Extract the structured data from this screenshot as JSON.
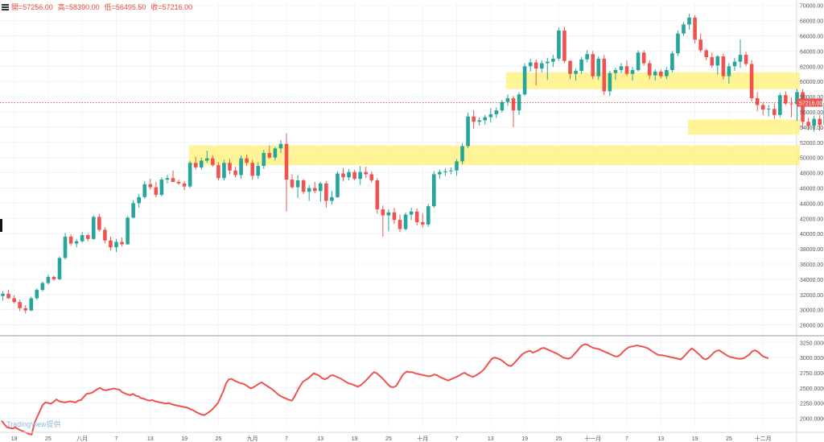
{
  "header": {
    "open": "開=57256.00",
    "high": "高=58390.00",
    "low": "低=56495.50",
    "close": "收=57216.00"
  },
  "watermark": "TradingView提供",
  "colors": {
    "up": "#26a69a",
    "down": "#ef5350",
    "zone": "#fff176",
    "line": "#ef5350"
  },
  "chart_data": [
    {
      "type": "candlestick",
      "y_ticks": [
        "70000.00",
        "68000.00",
        "66000.00",
        "64000.00",
        "62000.00",
        "60000.00",
        "58000.00",
        "56000.00",
        "54000.00",
        "52000.00",
        "50000.00",
        "48000.00",
        "46000.00",
        "44000.00",
        "42000.00",
        "40000.00",
        "38000.00",
        "36000.00",
        "34000.00",
        "32000.00",
        "30000.00",
        "28000.00"
      ],
      "ylim": [
        27000,
        70500
      ],
      "last_price_label": "57216.00",
      "x_tick_labels": [
        "19",
        "25",
        "八月",
        "7",
        "13",
        "19",
        "25",
        "九月",
        "7",
        "13",
        "19",
        "25",
        "十月",
        "7",
        "13",
        "19",
        "25",
        "十一月",
        "7",
        "13",
        "19",
        "25",
        "十二月"
      ],
      "x_tick_index": [
        2,
        8,
        14,
        20,
        26,
        32,
        38,
        44,
        50,
        56,
        62,
        68,
        74,
        80,
        86,
        92,
        98,
        104,
        110,
        116,
        122,
        128,
        134
      ],
      "zones": [
        {
          "y0": 49000,
          "y1": 51600,
          "from": 32.8,
          "to": 140.5
        },
        {
          "y0": 59000,
          "y1": 61200,
          "from": 88.7,
          "to": 140.5
        },
        {
          "y0": 53000,
          "y1": 55000,
          "from": 120.8,
          "to": 140.5
        }
      ],
      "ohlc": [
        [
          31800,
          32400,
          31200,
          32100
        ],
        [
          32100,
          32600,
          31400,
          31500
        ],
        [
          31500,
          31900,
          30800,
          31000
        ],
        [
          31000,
          31300,
          29800,
          30200
        ],
        [
          30200,
          30600,
          29500,
          29900
        ],
        [
          29900,
          31700,
          29800,
          31500
        ],
        [
          31500,
          32800,
          31300,
          32600
        ],
        [
          32600,
          33700,
          32400,
          33500
        ],
        [
          33500,
          34600,
          33300,
          34300
        ],
        [
          34300,
          34500,
          33800,
          34000
        ],
        [
          34000,
          37000,
          33900,
          36800
        ],
        [
          36800,
          40100,
          36600,
          39600
        ],
        [
          39600,
          39900,
          38400,
          38700
        ],
        [
          38700,
          39300,
          38200,
          39000
        ],
        [
          39000,
          40200,
          38800,
          39800
        ],
        [
          39800,
          40000,
          39000,
          39300
        ],
        [
          39300,
          42400,
          39200,
          42200
        ],
        [
          42200,
          42600,
          40300,
          40500
        ],
        [
          40500,
          40800,
          38700,
          39100
        ],
        [
          39100,
          39600,
          37800,
          38200
        ],
        [
          38200,
          39300,
          37600,
          38900
        ],
        [
          38900,
          39500,
          38300,
          38600
        ],
        [
          38600,
          42300,
          38500,
          42100
        ],
        [
          42100,
          44400,
          42000,
          44000
        ],
        [
          44000,
          45200,
          43400,
          44800
        ],
        [
          44800,
          46900,
          44600,
          46500
        ],
        [
          46500,
          47200,
          45800,
          46100
        ],
        [
          46100,
          46800,
          44800,
          45100
        ],
        [
          45100,
          47400,
          44900,
          47100
        ],
        [
          47100,
          47700,
          46600,
          47300
        ],
        [
          47300,
          48300,
          46800,
          46800
        ],
        [
          46800,
          47100,
          46400,
          46600
        ],
        [
          46600,
          46900,
          45700,
          46200
        ],
        [
          46200,
          49600,
          46000,
          49300
        ],
        [
          49300,
          50100,
          48400,
          48700
        ],
        [
          48700,
          50000,
          48400,
          49600
        ],
        [
          49600,
          50900,
          49300,
          49900
        ],
        [
          49900,
          50300,
          48800,
          49000
        ],
        [
          49000,
          49400,
          47000,
          47300
        ],
        [
          47300,
          49700,
          47000,
          49300
        ],
        [
          49300,
          49800,
          47800,
          48300
        ],
        [
          48300,
          48800,
          47400,
          47700
        ],
        [
          47700,
          50300,
          47200,
          49900
        ],
        [
          49900,
          50400,
          48900,
          49300
        ],
        [
          49300,
          49700,
          47100,
          47600
        ],
        [
          47600,
          49400,
          47200,
          48900
        ],
        [
          48900,
          51000,
          48500,
          50600
        ],
        [
          50600,
          51600,
          49800,
          50000
        ],
        [
          50000,
          51400,
          49600,
          51200
        ],
        [
          51200,
          52300,
          50600,
          51800
        ],
        [
          51800,
          53200,
          42900,
          47100
        ],
        [
          47100,
          47800,
          45900,
          46100
        ],
        [
          46100,
          47700,
          44700,
          47000
        ],
        [
          47000,
          47200,
          45200,
          45500
        ],
        [
          45500,
          46400,
          44300,
          46000
        ],
        [
          46000,
          46800,
          45300,
          45600
        ],
        [
          45600,
          46800,
          44200,
          46600
        ],
        [
          46600,
          46900,
          43400,
          44300
        ],
        [
          44300,
          45600,
          43800,
          44800
        ],
        [
          44800,
          48200,
          44700,
          47900
        ],
        [
          47900,
          48600,
          46900,
          47400
        ],
        [
          47400,
          48500,
          47000,
          48100
        ],
        [
          48100,
          48400,
          47000,
          47200
        ],
        [
          47200,
          48900,
          46400,
          48100
        ],
        [
          48100,
          48800,
          47300,
          47800
        ],
        [
          47800,
          48200,
          46700,
          47000
        ],
        [
          47000,
          47300,
          42600,
          43200
        ],
        [
          43200,
          43700,
          39600,
          42400
        ],
        [
          42400,
          43200,
          40300,
          42800
        ],
        [
          42800,
          43400,
          41300,
          41800
        ],
        [
          41800,
          42500,
          40200,
          40600
        ],
        [
          40600,
          42800,
          40400,
          42500
        ],
        [
          42500,
          43400,
          41800,
          42900
        ],
        [
          42900,
          43300,
          41100,
          41500
        ],
        [
          41500,
          42700,
          40800,
          41200
        ],
        [
          41200,
          43900,
          40900,
          43600
        ],
        [
          43600,
          48200,
          43400,
          47800
        ],
        [
          47800,
          48400,
          47200,
          48100
        ],
        [
          48100,
          48600,
          47600,
          48200
        ],
        [
          48200,
          48700,
          47800,
          48300
        ],
        [
          48300,
          49800,
          47600,
          49500
        ],
        [
          49500,
          51900,
          49100,
          51500
        ],
        [
          51500,
          55900,
          51200,
          55400
        ],
        [
          55400,
          56200,
          53800,
          54700
        ],
        [
          54700,
          55300,
          54200,
          54900
        ],
        [
          54900,
          55600,
          54300,
          55300
        ],
        [
          55300,
          56500,
          54600,
          55700
        ],
        [
          55700,
          56600,
          55200,
          56200
        ],
        [
          56200,
          57600,
          55900,
          57300
        ],
        [
          57300,
          58300,
          56800,
          57800
        ],
        [
          57800,
          58100,
          54000,
          56200
        ],
        [
          56200,
          58600,
          55600,
          58300
        ],
        [
          58300,
          62400,
          58100,
          62000
        ],
        [
          62000,
          63000,
          61300,
          62500
        ],
        [
          62500,
          62900,
          59500,
          61700
        ],
        [
          61700,
          62800,
          61200,
          62400
        ],
        [
          62400,
          63100,
          60200,
          62600
        ],
        [
          62600,
          63500,
          61900,
          63000
        ],
        [
          63000,
          67100,
          62700,
          66700
        ],
        [
          66700,
          67200,
          62400,
          62700
        ],
        [
          62700,
          62800,
          60300,
          61000
        ],
        [
          61000,
          61700,
          60100,
          61400
        ],
        [
          61400,
          63200,
          61000,
          62900
        ],
        [
          62900,
          64100,
          62500,
          63600
        ],
        [
          63600,
          64000,
          60300,
          60700
        ],
        [
          60700,
          63300,
          60200,
          63000
        ],
        [
          63000,
          63500,
          58200,
          58700
        ],
        [
          58700,
          61400,
          58100,
          61100
        ],
        [
          61100,
          61800,
          60200,
          61500
        ],
        [
          61500,
          62400,
          61100,
          62000
        ],
        [
          62000,
          62800,
          60700,
          61000
        ],
        [
          61000,
          61900,
          60100,
          61500
        ],
        [
          61500,
          64100,
          61300,
          63800
        ],
        [
          63800,
          64100,
          62100,
          62400
        ],
        [
          62400,
          62800,
          60300,
          60800
        ],
        [
          60800,
          61600,
          60100,
          61300
        ],
        [
          61300,
          61600,
          60400,
          60700
        ],
        [
          60700,
          61900,
          60300,
          61500
        ],
        [
          61500,
          64000,
          61200,
          63700
        ],
        [
          63700,
          66700,
          63400,
          66300
        ],
        [
          66300,
          67800,
          66000,
          67500
        ],
        [
          67500,
          68900,
          66800,
          68400
        ],
        [
          68400,
          68700,
          65000,
          65500
        ],
        [
          65500,
          66300,
          63800,
          64100
        ],
        [
          64100,
          64300,
          62800,
          63200
        ],
        [
          63200,
          63800,
          61800,
          62100
        ],
        [
          62100,
          63500,
          60900,
          63300
        ],
        [
          63300,
          63700,
          60200,
          60700
        ],
        [
          60700,
          62400,
          59700,
          62000
        ],
        [
          62000,
          63100,
          61400,
          62600
        ],
        [
          62600,
          65500,
          61800,
          63500
        ],
        [
          63500,
          63900,
          62000,
          62300
        ],
        [
          62300,
          62800,
          57400,
          57800
        ],
        [
          57800,
          58600,
          56100,
          56900
        ],
        [
          56900,
          57200,
          55600,
          56300
        ],
        [
          56300,
          56900,
          55400,
          56400
        ],
        [
          56400,
          57100,
          55100,
          55600
        ],
        [
          55600,
          58500,
          55300,
          58200
        ],
        [
          58200,
          58700,
          56900,
          57100
        ],
        [
          57100,
          57900,
          55300,
          57000
        ],
        [
          57000,
          59000,
          54800,
          58600
        ],
        [
          58600,
          59000,
          53800,
          54700
        ],
        [
          54700,
          55200,
          53600,
          54200
        ],
        [
          54200,
          55500,
          53400,
          55100
        ],
        [
          55100,
          55600,
          53500,
          54300
        ],
        [
          54300,
          57500,
          53900,
          57200
        ],
        [
          57200,
          59000,
          56800,
          57100
        ],
        [
          57256,
          58390,
          56495,
          57216
        ]
      ]
    },
    {
      "type": "line",
      "y_ticks": [
        "3250.0000",
        "3000.0000",
        "2750.0000",
        "2500.0000",
        "2250.0000",
        "2000.0000"
      ],
      "ylim": [
        1860,
        3320
      ],
      "values": [
        1960,
        1900,
        1850,
        1840,
        1830,
        1850,
        1820,
        1800,
        1780,
        1760,
        1740,
        1730,
        1920,
        2020,
        2120,
        2220,
        2260,
        2250,
        2240,
        2270,
        2310,
        2280,
        2270,
        2260,
        2270,
        2280,
        2270,
        2260,
        2290,
        2300,
        2350,
        2400,
        2410,
        2420,
        2450,
        2480,
        2500,
        2470,
        2460,
        2470,
        2480,
        2490,
        2480,
        2470,
        2430,
        2410,
        2390,
        2380,
        2400,
        2370,
        2360,
        2330,
        2320,
        2300,
        2290,
        2300,
        2280,
        2270,
        2260,
        2250,
        2240,
        2250,
        2230,
        2220,
        2210,
        2200,
        2190,
        2180,
        2170,
        2150,
        2130,
        2100,
        2080,
        2060,
        2050,
        2080,
        2110,
        2150,
        2200,
        2250,
        2350,
        2450,
        2580,
        2640,
        2650,
        2620,
        2600,
        2580,
        2570,
        2550,
        2520,
        2490,
        2510,
        2540,
        2570,
        2590,
        2560,
        2530,
        2500,
        2470,
        2430,
        2390,
        2360,
        2340,
        2320,
        2300,
        2290,
        2360,
        2450,
        2530,
        2600,
        2630,
        2660,
        2700,
        2740,
        2720,
        2700,
        2660,
        2640,
        2660,
        2700,
        2710,
        2690,
        2670,
        2650,
        2620,
        2590,
        2570,
        2560,
        2540,
        2520,
        2540,
        2580,
        2620,
        2670,
        2720,
        2760,
        2740,
        2700,
        2660,
        2610,
        2560,
        2520,
        2510,
        2530,
        2600,
        2680,
        2740,
        2770,
        2760,
        2760,
        2740,
        2730,
        2720,
        2710,
        2700,
        2690,
        2700,
        2720,
        2710,
        2680,
        2660,
        2640,
        2620,
        2640,
        2660,
        2680,
        2700,
        2730,
        2750,
        2720,
        2700,
        2680,
        2700,
        2730,
        2760,
        2800,
        2860,
        2920,
        2980,
        3000,
        2990,
        2970,
        2940,
        2900,
        2870,
        2860,
        2900,
        2950,
        3000,
        3050,
        3080,
        3100,
        3110,
        3080,
        3100,
        3120,
        3150,
        3160,
        3140,
        3120,
        3100,
        3080,
        3060,
        3030,
        3000,
        2990,
        2980,
        3000,
        3050,
        3100,
        3160,
        3200,
        3220,
        3210,
        3180,
        3160,
        3150,
        3140,
        3120,
        3100,
        3080,
        3060,
        3040,
        3020,
        3020,
        3050,
        3100,
        3140,
        3170,
        3180,
        3190,
        3200,
        3190,
        3180,
        3170,
        3150,
        3120,
        3090,
        3060,
        3040,
        3040,
        3030,
        3020,
        3010,
        3000,
        2990,
        2980,
        2970,
        3010,
        3060,
        3110,
        3150,
        3120,
        3080,
        3040,
        2990,
        2970,
        2990,
        3030,
        3080,
        3110,
        3120,
        3090,
        3060,
        3030,
        3010,
        3000,
        2990,
        2980,
        2980,
        2990,
        3020,
        3050,
        3100,
        3120,
        3100,
        3060,
        3020,
        3000,
        2990
      ]
    }
  ]
}
